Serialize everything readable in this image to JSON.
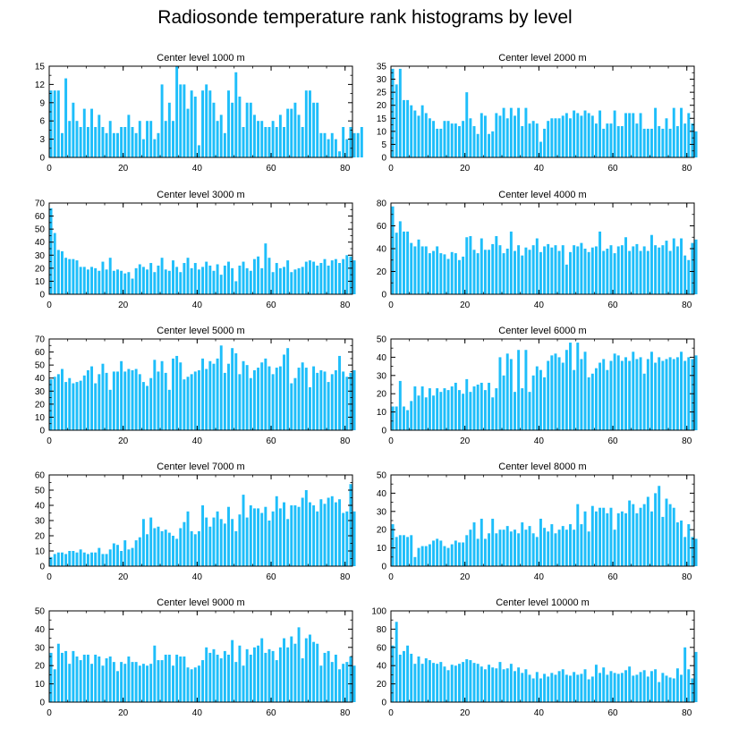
{
  "title": "Radiosonde temperature rank histograms by level",
  "bar_color": "#1ebefa",
  "chart_data": [
    {
      "type": "bar",
      "title": "Center level 1000 m",
      "xlabel": "",
      "ylabel": "",
      "xlim": [
        0,
        82
      ],
      "ylim": [
        0,
        15
      ],
      "xticks": [
        0,
        20,
        40,
        60,
        80
      ],
      "yticks": [
        0,
        3,
        6,
        9,
        12,
        15
      ],
      "values": [
        11,
        11,
        11,
        4,
        13,
        6,
        9,
        6,
        5,
        8,
        5,
        8,
        5,
        7,
        5,
        4,
        6,
        4,
        4,
        5,
        5,
        7,
        5,
        4,
        6,
        3,
        6,
        6,
        3,
        4,
        12,
        6,
        9,
        6,
        15,
        12,
        12,
        8,
        11,
        10,
        2,
        11,
        12,
        11,
        9,
        6,
        7,
        4,
        11,
        9,
        14,
        10,
        5,
        9,
        9,
        7,
        6,
        6,
        5,
        5,
        6,
        5,
        7,
        5,
        8,
        8,
        9,
        7,
        5,
        11,
        11,
        9,
        9,
        4,
        4,
        3,
        4,
        3,
        1,
        5,
        3,
        5,
        4,
        4,
        5
      ]
    },
    {
      "type": "bar",
      "title": "Center level 2000 m",
      "xlabel": "",
      "ylabel": "",
      "xlim": [
        0,
        82
      ],
      "ylim": [
        0,
        35
      ],
      "xticks": [
        0,
        20,
        40,
        60,
        80
      ],
      "yticks": [
        0,
        5,
        10,
        15,
        20,
        25,
        30,
        35
      ],
      "values": [
        34,
        28,
        34,
        22,
        22,
        20,
        18,
        16,
        20,
        17,
        15,
        14,
        11,
        11,
        14,
        14,
        13,
        13,
        12,
        14,
        25,
        15,
        12,
        9,
        17,
        16,
        9,
        10,
        17,
        16,
        19,
        15,
        19,
        16,
        19,
        12,
        19,
        13,
        14,
        13,
        6,
        11,
        14,
        15,
        15,
        15,
        16,
        17,
        15,
        18,
        17,
        16,
        18,
        17,
        16,
        13,
        18,
        11,
        13,
        13,
        18,
        12,
        12,
        17,
        17,
        17,
        13,
        17,
        11,
        11,
        11,
        19,
        12,
        11,
        15,
        11,
        19,
        12,
        19,
        13,
        17,
        13,
        10
      ]
    },
    {
      "type": "bar",
      "title": "Center level 3000 m",
      "xlabel": "",
      "ylabel": "",
      "xlim": [
        0,
        82
      ],
      "ylim": [
        0,
        70
      ],
      "xticks": [
        0,
        20,
        40,
        60,
        80
      ],
      "yticks": [
        0,
        10,
        20,
        30,
        40,
        50,
        60,
        70
      ],
      "values": [
        66,
        47,
        34,
        33,
        28,
        27,
        27,
        26,
        21,
        21,
        19,
        21,
        20,
        18,
        25,
        19,
        28,
        18,
        19,
        18,
        16,
        17,
        12,
        20,
        23,
        21,
        19,
        24,
        17,
        22,
        28,
        19,
        18,
        26,
        21,
        17,
        24,
        28,
        20,
        24,
        19,
        21,
        25,
        22,
        18,
        23,
        15,
        22,
        25,
        20,
        10,
        22,
        25,
        20,
        18,
        27,
        29,
        20,
        39,
        28,
        17,
        24,
        20,
        21,
        26,
        17,
        19,
        20,
        21,
        25,
        26,
        25,
        22,
        24,
        27,
        22,
        26,
        27,
        24,
        27,
        30,
        29,
        26
      ]
    },
    {
      "type": "bar",
      "title": "Center level 4000 m",
      "xlabel": "",
      "ylabel": "",
      "xlim": [
        0,
        82
      ],
      "ylim": [
        0,
        80
      ],
      "xticks": [
        0,
        20,
        40,
        60,
        80
      ],
      "yticks": [
        0,
        20,
        40,
        60,
        80
      ],
      "values": [
        77,
        54,
        64,
        55,
        55,
        45,
        42,
        48,
        42,
        42,
        36,
        38,
        42,
        36,
        35,
        31,
        37,
        36,
        30,
        33,
        50,
        51,
        39,
        36,
        49,
        39,
        39,
        44,
        51,
        43,
        36,
        40,
        55,
        38,
        43,
        34,
        41,
        39,
        43,
        49,
        37,
        42,
        44,
        41,
        43,
        38,
        43,
        26,
        37,
        43,
        42,
        45,
        40,
        37,
        41,
        42,
        55,
        38,
        40,
        43,
        36,
        42,
        43,
        50,
        38,
        42,
        44,
        38,
        42,
        38,
        52,
        43,
        41,
        43,
        47,
        38,
        49,
        42,
        49,
        34,
        30,
        45,
        48
      ]
    },
    {
      "type": "bar",
      "title": "Center level 5000 m",
      "xlabel": "",
      "ylabel": "",
      "xlim": [
        0,
        82
      ],
      "ylim": [
        0,
        70
      ],
      "xticks": [
        0,
        20,
        40,
        60,
        80
      ],
      "yticks": [
        0,
        10,
        20,
        30,
        40,
        50,
        60,
        70
      ],
      "values": [
        39,
        41,
        43,
        47,
        37,
        40,
        36,
        37,
        38,
        42,
        46,
        49,
        36,
        43,
        51,
        44,
        31,
        45,
        45,
        53,
        45,
        47,
        46,
        47,
        43,
        37,
        34,
        40,
        54,
        45,
        53,
        44,
        31,
        55,
        57,
        52,
        39,
        41,
        43,
        45,
        46,
        55,
        47,
        53,
        51,
        55,
        65,
        44,
        51,
        63,
        59,
        43,
        53,
        50,
        40,
        46,
        48,
        52,
        55,
        49,
        43,
        48,
        49,
        58,
        63,
        36,
        40,
        48,
        52,
        48,
        33,
        49,
        44,
        46,
        45,
        37,
        43,
        46,
        57,
        45,
        41,
        44,
        46
      ]
    },
    {
      "type": "bar",
      "title": "Center level 6000 m",
      "xlabel": "",
      "ylabel": "",
      "xlim": [
        0,
        82
      ],
      "ylim": [
        0,
        50
      ],
      "xticks": [
        0,
        20,
        40,
        60,
        80
      ],
      "yticks": [
        0,
        10,
        20,
        30,
        40,
        50
      ],
      "values": [
        13,
        13,
        27,
        13,
        11,
        16,
        24,
        19,
        24,
        18,
        23,
        19,
        23,
        21,
        23,
        22,
        24,
        26,
        22,
        20,
        28,
        21,
        24,
        25,
        26,
        22,
        26,
        18,
        23,
        40,
        30,
        42,
        39,
        21,
        44,
        23,
        44,
        21,
        30,
        35,
        33,
        29,
        38,
        41,
        42,
        40,
        37,
        44,
        48,
        33,
        48,
        39,
        43,
        29,
        31,
        34,
        37,
        39,
        33,
        38,
        42,
        41,
        38,
        40,
        38,
        43,
        39,
        40,
        31,
        39,
        43,
        37,
        40,
        38,
        39,
        40,
        39,
        40,
        43,
        38,
        40,
        39,
        41
      ]
    },
    {
      "type": "bar",
      "title": "Center level 7000 m",
      "xlabel": "",
      "ylabel": "",
      "xlim": [
        0,
        82
      ],
      "ylim": [
        0,
        60
      ],
      "xticks": [
        0,
        20,
        40,
        60,
        80
      ],
      "yticks": [
        0,
        10,
        20,
        30,
        40,
        50,
        60
      ],
      "values": [
        6,
        8,
        9,
        9,
        8,
        10,
        10,
        9,
        11,
        9,
        8,
        9,
        9,
        12,
        8,
        8,
        11,
        15,
        14,
        10,
        17,
        11,
        12,
        17,
        19,
        31,
        21,
        32,
        25,
        26,
        23,
        24,
        22,
        20,
        18,
        25,
        29,
        36,
        23,
        21,
        23,
        40,
        32,
        26,
        32,
        36,
        31,
        28,
        39,
        31,
        23,
        34,
        47,
        32,
        40,
        38,
        38,
        35,
        39,
        30,
        36,
        46,
        38,
        42,
        31,
        40,
        40,
        39,
        45,
        50,
        42,
        40,
        36,
        44,
        41,
        45,
        46,
        42,
        44,
        35,
        36,
        54,
        36
      ]
    },
    {
      "type": "bar",
      "title": "Center level 8000 m",
      "xlabel": "",
      "ylabel": "",
      "xlim": [
        0,
        82
      ],
      "ylim": [
        0,
        50
      ],
      "xticks": [
        0,
        20,
        40,
        60,
        80
      ],
      "yticks": [
        0,
        10,
        20,
        30,
        40,
        50
      ],
      "values": [
        23,
        16,
        17,
        17,
        16,
        17,
        5,
        10,
        11,
        11,
        12,
        14,
        15,
        14,
        11,
        10,
        12,
        14,
        13,
        13,
        17,
        20,
        24,
        15,
        26,
        15,
        18,
        26,
        18,
        20,
        20,
        22,
        19,
        20,
        18,
        24,
        20,
        22,
        18,
        16,
        26,
        21,
        19,
        23,
        18,
        20,
        22,
        20,
        23,
        20,
        34,
        23,
        30,
        19,
        33,
        30,
        32,
        32,
        29,
        32,
        20,
        29,
        30,
        29,
        36,
        34,
        29,
        32,
        34,
        38,
        30,
        40,
        44,
        27,
        37,
        34,
        32,
        24,
        25,
        16,
        23,
        16,
        15
      ]
    },
    {
      "type": "bar",
      "title": "Center level 9000 m",
      "xlabel": "",
      "ylabel": "",
      "xlim": [
        0,
        82
      ],
      "ylim": [
        0,
        50
      ],
      "xticks": [
        0,
        20,
        40,
        60,
        80
      ],
      "yticks": [
        0,
        10,
        20,
        30,
        40,
        50
      ],
      "values": [
        27,
        18,
        32,
        27,
        28,
        21,
        28,
        25,
        23,
        26,
        26,
        21,
        26,
        25,
        20,
        24,
        25,
        22,
        17,
        22,
        21,
        25,
        22,
        22,
        20,
        21,
        20,
        21,
        31,
        23,
        23,
        26,
        26,
        20,
        26,
        25,
        25,
        19,
        18,
        19,
        20,
        23,
        30,
        27,
        29,
        26,
        24,
        28,
        26,
        34,
        22,
        31,
        20,
        29,
        26,
        30,
        31,
        35,
        27,
        29,
        28,
        23,
        30,
        35,
        30,
        36,
        32,
        41,
        24,
        35,
        37,
        33,
        32,
        20,
        27,
        28,
        22,
        26,
        18,
        21,
        22,
        25,
        20
      ]
    },
    {
      "type": "bar",
      "title": "Center level 10000 m",
      "xlabel": "",
      "ylabel": "",
      "xlim": [
        0,
        82
      ],
      "ylim": [
        0,
        100
      ],
      "xticks": [
        0,
        20,
        40,
        60,
        80
      ],
      "yticks": [
        0,
        20,
        40,
        60,
        80,
        100
      ],
      "values": [
        62,
        88,
        52,
        56,
        62,
        53,
        42,
        50,
        42,
        48,
        46,
        43,
        42,
        44,
        39,
        35,
        41,
        40,
        42,
        44,
        47,
        46,
        43,
        42,
        39,
        36,
        41,
        38,
        37,
        44,
        36,
        37,
        42,
        34,
        38,
        32,
        36,
        30,
        26,
        33,
        26,
        31,
        28,
        32,
        30,
        34,
        36,
        30,
        29,
        33,
        30,
        31,
        36,
        25,
        28,
        41,
        32,
        38,
        30,
        34,
        32,
        31,
        32,
        35,
        39,
        29,
        30,
        33,
        35,
        28,
        34,
        36,
        22,
        32,
        29,
        27,
        26,
        37,
        30,
        60,
        36,
        26,
        55
      ]
    }
  ]
}
